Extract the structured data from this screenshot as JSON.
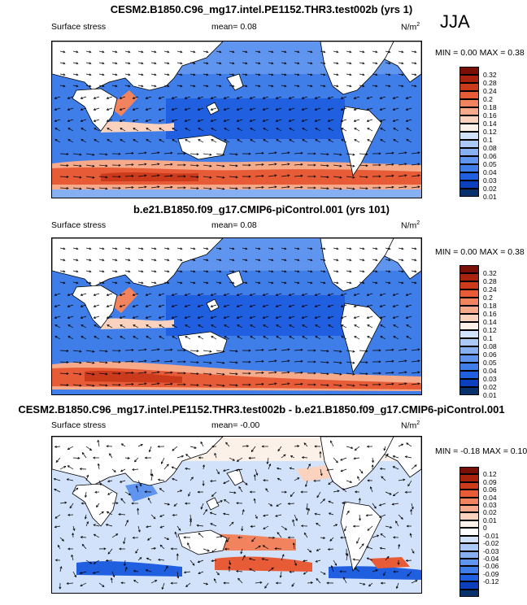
{
  "season": "JJA",
  "units": "N/m",
  "units_sup": "2",
  "palettes": {
    "abs": [
      "#08306b",
      "#0b3fbd",
      "#1f5fe0",
      "#3f7de8",
      "#5f95ee",
      "#86b0f2",
      "#abc9f6",
      "#d2e2fa",
      "#fbf1e8",
      "#fad2bd",
      "#f6aa8a",
      "#f1845f",
      "#e75c37",
      "#cc3a1c",
      "#a8220d",
      "#7a0f05"
    ],
    "diff": [
      "#08306b",
      "#0b3fbd",
      "#1f5fe0",
      "#3f7de8",
      "#5f95ee",
      "#86b0f2",
      "#abc9f6",
      "#d2e2fa",
      "#ffffff",
      "#fbf1e8",
      "#fad2bd",
      "#f6aa8a",
      "#f1845f",
      "#e75c37",
      "#cc3a1c",
      "#a8220d",
      "#7a0f05"
    ]
  },
  "panels": [
    {
      "title": "CESM2.B1850.C96_mg17.intel.PE1152.THR3.test002b (yrs 1)",
      "variable": "Surface stress",
      "mean": "mean=  0.08",
      "minmax": "MIN =  0.00 MAX =  0.38",
      "legend_ticks": [
        "0.32",
        "0.28",
        "0.24",
        "0.2",
        "0.18",
        "0.16",
        "0.14",
        "0.12",
        "0.1",
        "0.08",
        "0.06",
        "0.05",
        "0.04",
        "0.03",
        "0.02",
        "0.01"
      ]
    },
    {
      "title": "b.e21.B1850.f09_g17.CMIP6-piControl.001 (yrs 101)",
      "variable": "Surface stress",
      "mean": "mean=  0.08",
      "minmax": "MIN =  0.00 MAX =  0.38",
      "legend_ticks": [
        "0.32",
        "0.28",
        "0.24",
        "0.2",
        "0.18",
        "0.16",
        "0.14",
        "0.12",
        "0.1",
        "0.08",
        "0.06",
        "0.05",
        "0.04",
        "0.03",
        "0.02",
        "0.01"
      ]
    },
    {
      "title": "CESM2.B1850.C96_mg17.intel.PE1152.THR3.test002b - b.e21.B1850.f09_g17.CMIP6-piControl.001",
      "variable": "Surface stress",
      "mean": "mean= -0.00",
      "minmax": "MIN = -0.18 MAX =  0.10",
      "legend_ticks": [
        "0.12",
        "0.09",
        "0.06",
        "0.04",
        "0.03",
        "0.02",
        "0.01",
        "0",
        "-0.01",
        "-0.02",
        "-0.03",
        "-0.04",
        "-0.06",
        "-0.09",
        "-0.12"
      ]
    }
  ],
  "chart_data": [
    {
      "type": "heatmap",
      "title": "CESM2.B1850.C96_mg17.intel.PE1152.THR3.test002b (yrs 1)",
      "variable": "Surface stress",
      "units": "N/m^2",
      "season": "JJA",
      "mean": 0.08,
      "min": 0.0,
      "max": 0.38,
      "contour_levels": [
        0.01,
        0.02,
        0.03,
        0.04,
        0.05,
        0.06,
        0.08,
        0.1,
        0.12,
        0.14,
        0.16,
        0.18,
        0.2,
        0.24,
        0.28,
        0.32
      ]
    },
    {
      "type": "heatmap",
      "title": "b.e21.B1850.f09_g17.CMIP6-piControl.001 (yrs 101)",
      "variable": "Surface stress",
      "units": "N/m^2",
      "season": "JJA",
      "mean": 0.08,
      "min": 0.0,
      "max": 0.38,
      "contour_levels": [
        0.01,
        0.02,
        0.03,
        0.04,
        0.05,
        0.06,
        0.08,
        0.1,
        0.12,
        0.14,
        0.16,
        0.18,
        0.2,
        0.24,
        0.28,
        0.32
      ]
    },
    {
      "type": "heatmap",
      "title": "CESM2.B1850.C96_mg17.intel.PE1152.THR3.test002b - b.e21.B1850.f09_g17.CMIP6-piControl.001",
      "variable": "Surface stress",
      "units": "N/m^2",
      "season": "JJA",
      "mean": -0.0,
      "min": -0.18,
      "max": 0.1,
      "contour_levels": [
        -0.12,
        -0.09,
        -0.06,
        -0.04,
        -0.03,
        -0.02,
        -0.01,
        0,
        0.01,
        0.02,
        0.03,
        0.04,
        0.06,
        0.09,
        0.12
      ]
    }
  ]
}
